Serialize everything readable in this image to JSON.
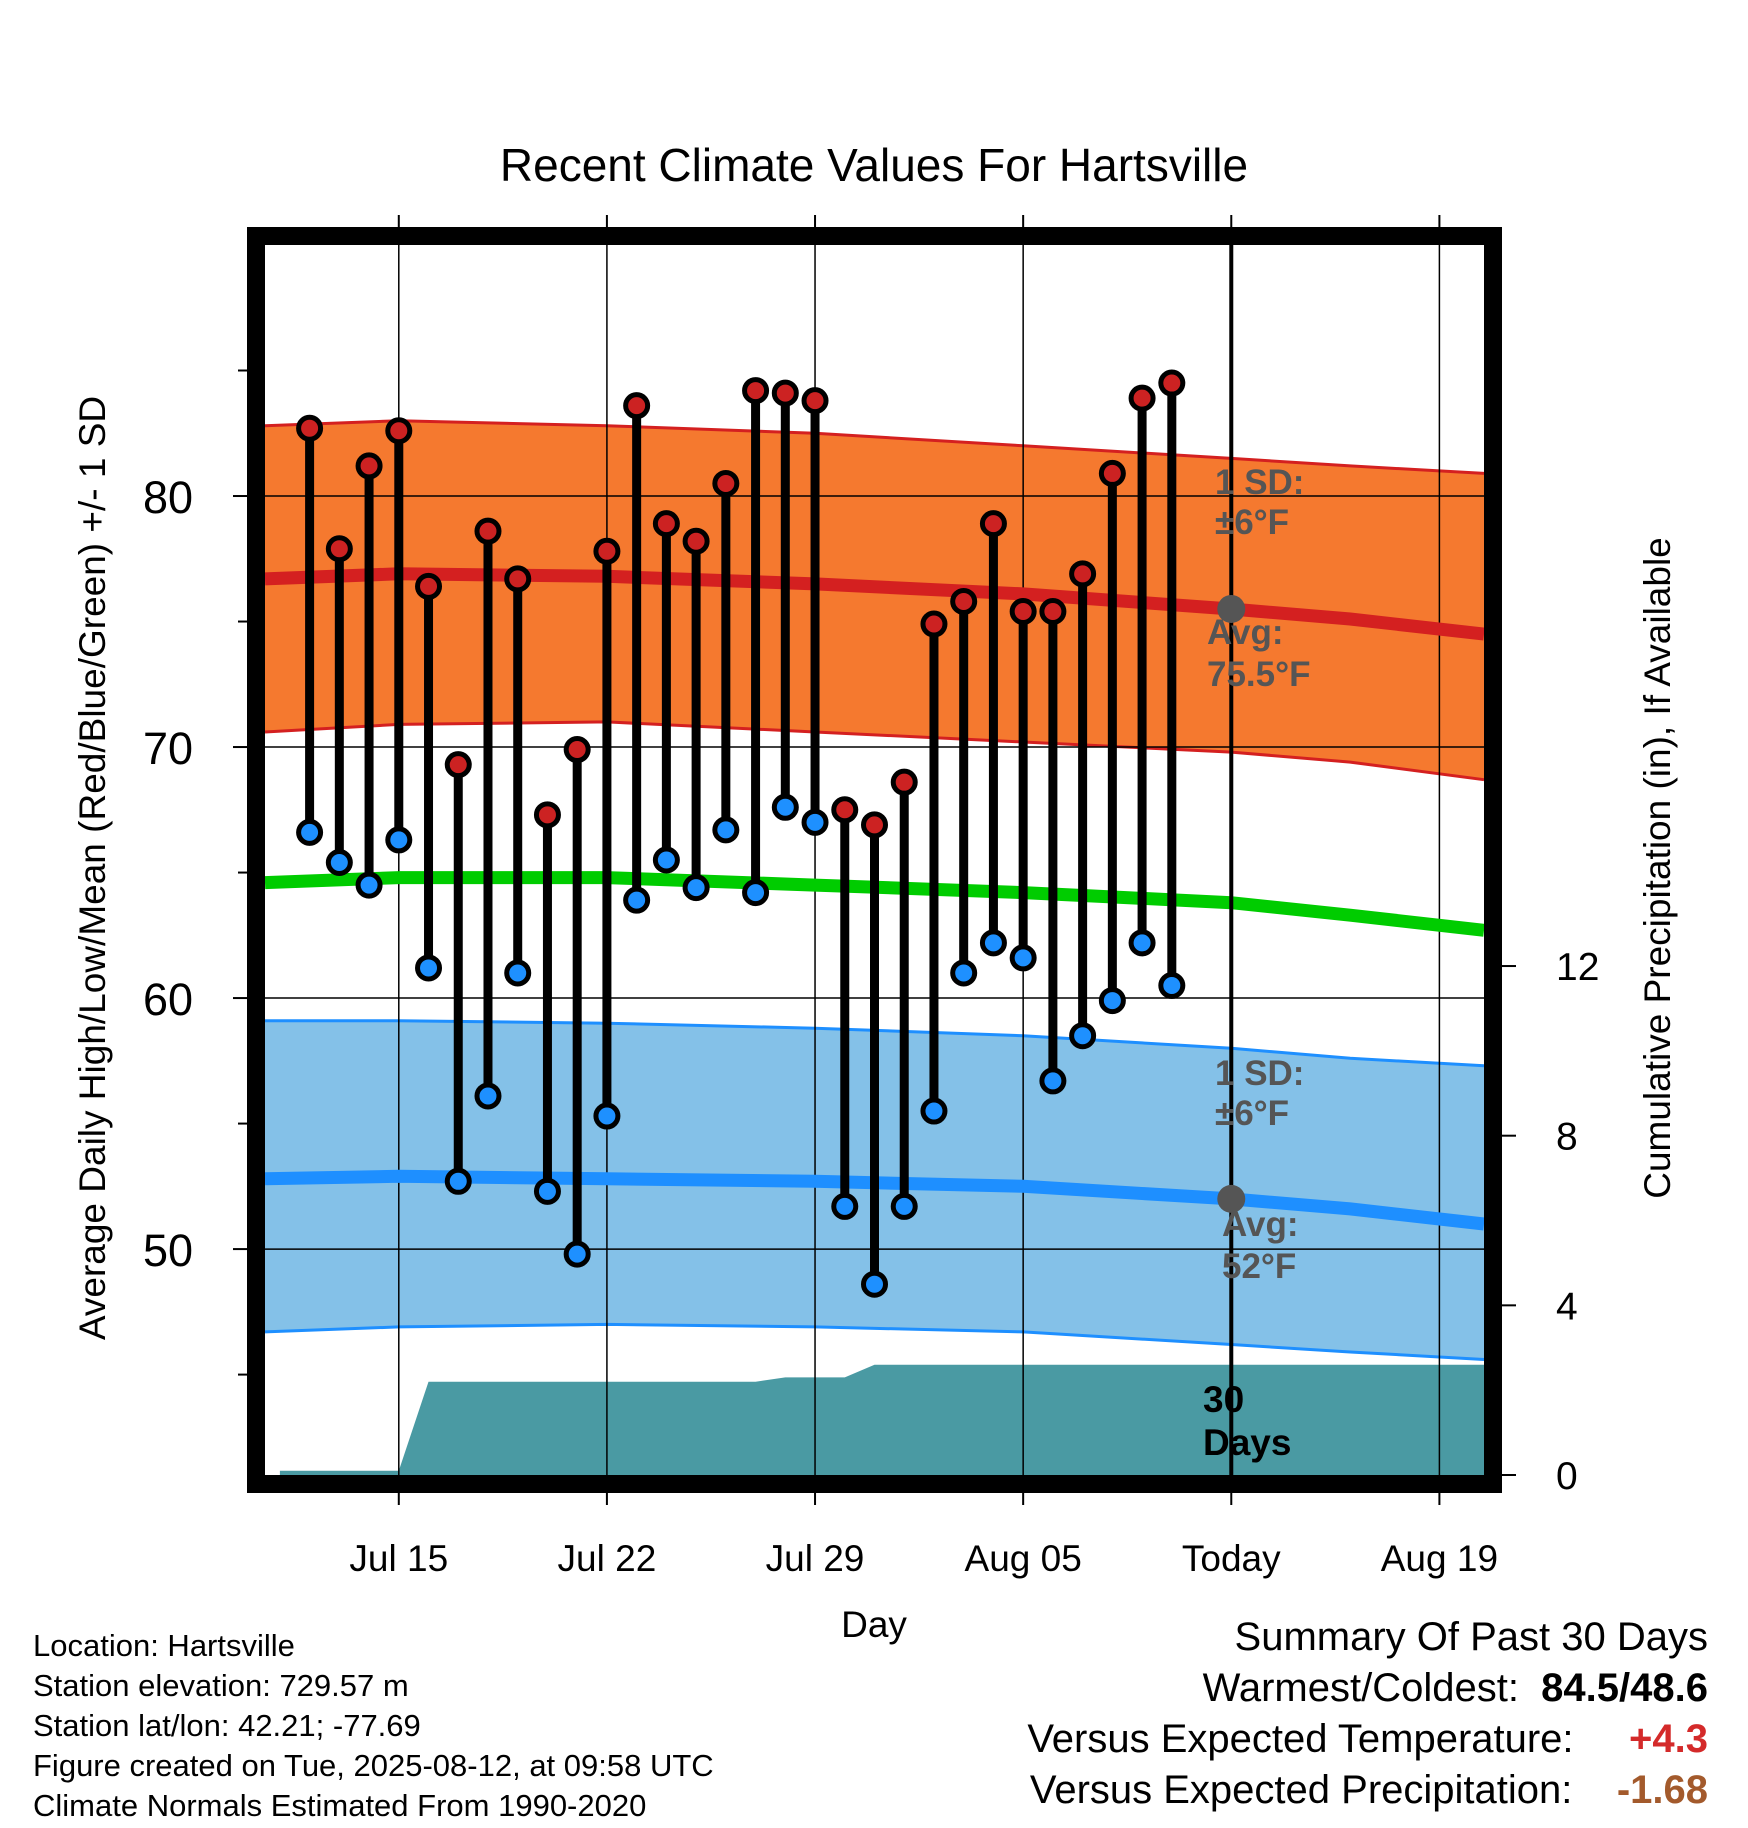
{
  "chart_data": {
    "type": "line",
    "title": "Recent Climate Values For Hartsville",
    "xlabel": "Day",
    "ylabel": "Average Daily High/Low/Mean (Red/Blue/Green) +/- 1 SD",
    "y2label": "Cumulative Precipitation (in), If Available",
    "x_day_range": [
      10.5,
      51.5
    ],
    "today_day": 43,
    "ylim": [
      41,
      90
    ],
    "y2lim": [
      0,
      29
    ],
    "x_ticks": [
      {
        "day": 15,
        "label": "Jul 15"
      },
      {
        "day": 22,
        "label": "Jul 22"
      },
      {
        "day": 29,
        "label": "Jul 29"
      },
      {
        "day": 36,
        "label": "Aug 05"
      },
      {
        "day": 43,
        "label": "Today"
      },
      {
        "day": 50,
        "label": "Aug 19"
      }
    ],
    "y_ticks": [
      50,
      60,
      70,
      80
    ],
    "y2_ticks": [
      0,
      4,
      8,
      12
    ],
    "grid": true,
    "daily": {
      "day": [
        12,
        13,
        14,
        15,
        16,
        17,
        18,
        19,
        20,
        21,
        22,
        23,
        24,
        25,
        26,
        27,
        28,
        29,
        30,
        31,
        32,
        33,
        34,
        35,
        36,
        37,
        38,
        39,
        40,
        41,
        42
      ],
      "high": [
        82.7,
        77.9,
        81.2,
        82.6,
        76.4,
        69.3,
        78.6,
        76.7,
        67.3,
        69.9,
        77.8,
        83.6,
        78.9,
        78.2,
        80.5,
        84.2,
        84.1,
        83.8,
        67.5,
        66.9,
        68.6,
        74.9,
        75.8,
        78.9,
        75.4,
        75.4,
        76.9,
        80.9,
        83.9,
        84.5,
        null
      ],
      "low": [
        66.6,
        65.4,
        64.5,
        66.3,
        61.2,
        52.7,
        56.1,
        61.0,
        52.3,
        49.8,
        55.3,
        63.9,
        65.5,
        64.4,
        66.7,
        64.2,
        67.6,
        67.0,
        51.7,
        48.6,
        51.7,
        55.5,
        61.0,
        62.2,
        61.6,
        56.7,
        58.5,
        59.9,
        62.2,
        60.5,
        null
      ],
      "high_color": "#cc2222",
      "low_color": "#1e90ff"
    },
    "normals": {
      "day": [
        10.5,
        15,
        22,
        29,
        36,
        43,
        47,
        51.5
      ],
      "avg_high": [
        76.7,
        76.9,
        76.8,
        76.5,
        76.1,
        75.5,
        75.1,
        74.5
      ],
      "avg_high_plus_sd": [
        82.8,
        83.0,
        82.8,
        82.5,
        82.0,
        81.5,
        81.2,
        80.9
      ],
      "avg_high_minus_sd": [
        70.6,
        70.9,
        71.0,
        70.6,
        70.2,
        69.8,
        69.4,
        68.7
      ],
      "avg_mean": [
        64.6,
        64.8,
        64.8,
        64.5,
        64.2,
        63.8,
        63.3,
        62.7
      ],
      "avg_low": [
        52.8,
        52.9,
        52.8,
        52.7,
        52.5,
        52.0,
        51.6,
        51.0
      ],
      "avg_low_plus_sd": [
        59.1,
        59.1,
        59.0,
        58.8,
        58.5,
        58.0,
        57.6,
        57.3
      ],
      "avg_low_minus_sd": [
        46.7,
        46.9,
        47.0,
        46.9,
        46.7,
        46.2,
        45.9,
        45.6
      ],
      "high_band_color": "#f5792f",
      "high_line_color": "#d42020",
      "mean_line_color": "#00cc00",
      "low_band_color": "#84c1e8",
      "low_line_color": "#1e8fff"
    },
    "precip_cumulative": {
      "day": [
        11,
        13,
        15,
        16,
        19,
        22,
        25,
        26,
        27,
        28,
        29,
        30,
        31,
        32,
        36,
        43,
        51.5
      ],
      "value": [
        0.1,
        0.1,
        0.1,
        2.2,
        2.2,
        2.2,
        2.2,
        2.2,
        2.2,
        2.3,
        2.3,
        2.3,
        2.6,
        2.6,
        2.6,
        2.6,
        2.6
      ],
      "color": "#4a9aa3"
    },
    "annotations": {
      "high_sd_label": "1 SD:",
      "high_sd_value": "±6°F",
      "high_avg_label": "Avg:",
      "high_avg_value": "75.5°F",
      "low_sd_label": "1 SD:",
      "low_sd_value": "±6°F",
      "low_avg_label": "Avg:",
      "low_avg_value": "52°F",
      "period_number": "30",
      "period_unit": "Days"
    }
  },
  "station": {
    "location": "Location: Hartsville",
    "elevation": "Station elevation: 729.57 m",
    "latlon": "Station lat/lon: 42.21; -77.69",
    "created": "Figure created on Tue, 2025-08-12, at 09:58 UTC",
    "normals": "Climate Normals Estimated From 1990-2020"
  },
  "summary": {
    "title": "Summary Of Past 30 Days",
    "warm_cold_label": "Warmest/Coldest:",
    "warm_cold_value": "84.5/48.6",
    "temp_label": "Versus Expected Temperature:",
    "temp_value": "+4.3",
    "temp_color": "#d42a2a",
    "precip_label": "Versus Expected Precipitation:",
    "precip_value": "-1.68",
    "precip_color": "#a35a2c"
  }
}
